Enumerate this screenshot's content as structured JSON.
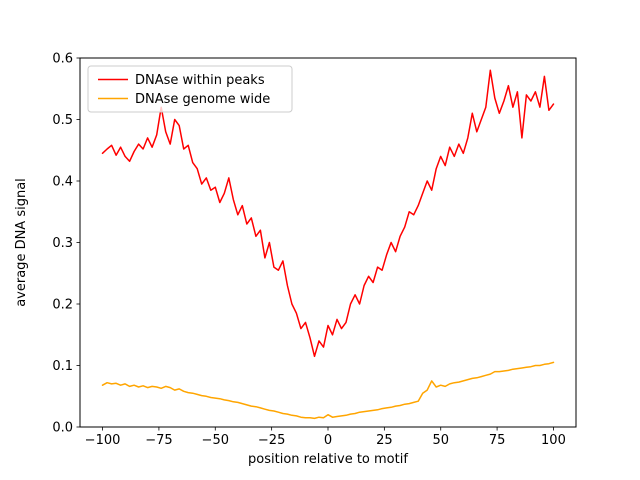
{
  "figure": {
    "background": "#ffffff",
    "axes_color": "#000000",
    "tick_color": "#000000",
    "legend_border_color": "#cccccc"
  },
  "chart_data": {
    "type": "line",
    "title": "",
    "xlabel": "position relative to motif",
    "ylabel": "average DNA signal",
    "xlim": [
      -110,
      110
    ],
    "ylim": [
      0.0,
      0.6
    ],
    "grid": false,
    "legend_position": "upper left",
    "xticks": {
      "values": [
        -100,
        -75,
        -50,
        -25,
        0,
        25,
        50,
        75,
        100
      ],
      "labels": [
        "−100",
        "−75",
        "−50",
        "−25",
        "0",
        "25",
        "50",
        "75",
        "100"
      ]
    },
    "yticks": {
      "values": [
        0.0,
        0.1,
        0.2,
        0.3,
        0.4,
        0.5,
        0.6
      ],
      "labels": [
        "0.0",
        "0.1",
        "0.2",
        "0.3",
        "0.4",
        "0.5",
        "0.6"
      ]
    },
    "x": [
      -100,
      -98,
      -96,
      -94,
      -92,
      -90,
      -88,
      -86,
      -84,
      -82,
      -80,
      -78,
      -76,
      -74,
      -72,
      -70,
      -68,
      -66,
      -64,
      -62,
      -60,
      -58,
      -56,
      -54,
      -52,
      -50,
      -48,
      -46,
      -44,
      -42,
      -40,
      -38,
      -36,
      -34,
      -32,
      -30,
      -28,
      -26,
      -24,
      -22,
      -20,
      -18,
      -16,
      -14,
      -12,
      -10,
      -8,
      -6,
      -4,
      -2,
      0,
      2,
      4,
      6,
      8,
      10,
      12,
      14,
      16,
      18,
      20,
      22,
      24,
      26,
      28,
      30,
      32,
      34,
      36,
      38,
      40,
      42,
      44,
      46,
      48,
      50,
      52,
      54,
      56,
      58,
      60,
      62,
      64,
      66,
      68,
      70,
      72,
      74,
      76,
      78,
      80,
      82,
      84,
      86,
      88,
      90,
      92,
      94,
      96,
      98,
      100
    ],
    "series": [
      {
        "name": "DNAse within peaks",
        "color": "#ff0000",
        "values": [
          0.445,
          0.452,
          0.458,
          0.442,
          0.455,
          0.44,
          0.432,
          0.448,
          0.46,
          0.452,
          0.47,
          0.455,
          0.475,
          0.52,
          0.48,
          0.46,
          0.5,
          0.49,
          0.452,
          0.458,
          0.43,
          0.42,
          0.395,
          0.405,
          0.385,
          0.39,
          0.365,
          0.38,
          0.405,
          0.37,
          0.345,
          0.36,
          0.33,
          0.34,
          0.31,
          0.32,
          0.275,
          0.3,
          0.26,
          0.255,
          0.27,
          0.23,
          0.2,
          0.185,
          0.16,
          0.17,
          0.145,
          0.115,
          0.14,
          0.13,
          0.165,
          0.15,
          0.175,
          0.16,
          0.17,
          0.2,
          0.215,
          0.2,
          0.23,
          0.245,
          0.235,
          0.26,
          0.255,
          0.28,
          0.3,
          0.285,
          0.31,
          0.325,
          0.35,
          0.345,
          0.36,
          0.38,
          0.4,
          0.385,
          0.42,
          0.44,
          0.425,
          0.455,
          0.44,
          0.46,
          0.445,
          0.47,
          0.51,
          0.48,
          0.5,
          0.52,
          0.58,
          0.535,
          0.51,
          0.53,
          0.555,
          0.52,
          0.545,
          0.47,
          0.54,
          0.53,
          0.545,
          0.52,
          0.57,
          0.515,
          0.525
        ]
      },
      {
        "name": "DNAse genome wide",
        "color": "#ffa500",
        "values": [
          0.068,
          0.072,
          0.07,
          0.071,
          0.068,
          0.07,
          0.066,
          0.068,
          0.065,
          0.067,
          0.064,
          0.066,
          0.065,
          0.063,
          0.066,
          0.064,
          0.06,
          0.062,
          0.058,
          0.056,
          0.055,
          0.053,
          0.051,
          0.05,
          0.048,
          0.047,
          0.046,
          0.044,
          0.043,
          0.041,
          0.04,
          0.038,
          0.036,
          0.034,
          0.033,
          0.031,
          0.029,
          0.027,
          0.026,
          0.024,
          0.022,
          0.021,
          0.019,
          0.018,
          0.016,
          0.015,
          0.015,
          0.014,
          0.016,
          0.015,
          0.02,
          0.016,
          0.017,
          0.018,
          0.019,
          0.021,
          0.022,
          0.024,
          0.025,
          0.026,
          0.027,
          0.028,
          0.03,
          0.031,
          0.032,
          0.034,
          0.035,
          0.037,
          0.038,
          0.04,
          0.042,
          0.055,
          0.06,
          0.075,
          0.065,
          0.068,
          0.066,
          0.07,
          0.072,
          0.073,
          0.075,
          0.077,
          0.079,
          0.08,
          0.082,
          0.084,
          0.086,
          0.09,
          0.09,
          0.091,
          0.092,
          0.094,
          0.095,
          0.096,
          0.097,
          0.098,
          0.1,
          0.1,
          0.102,
          0.103,
          0.105
        ]
      }
    ]
  }
}
